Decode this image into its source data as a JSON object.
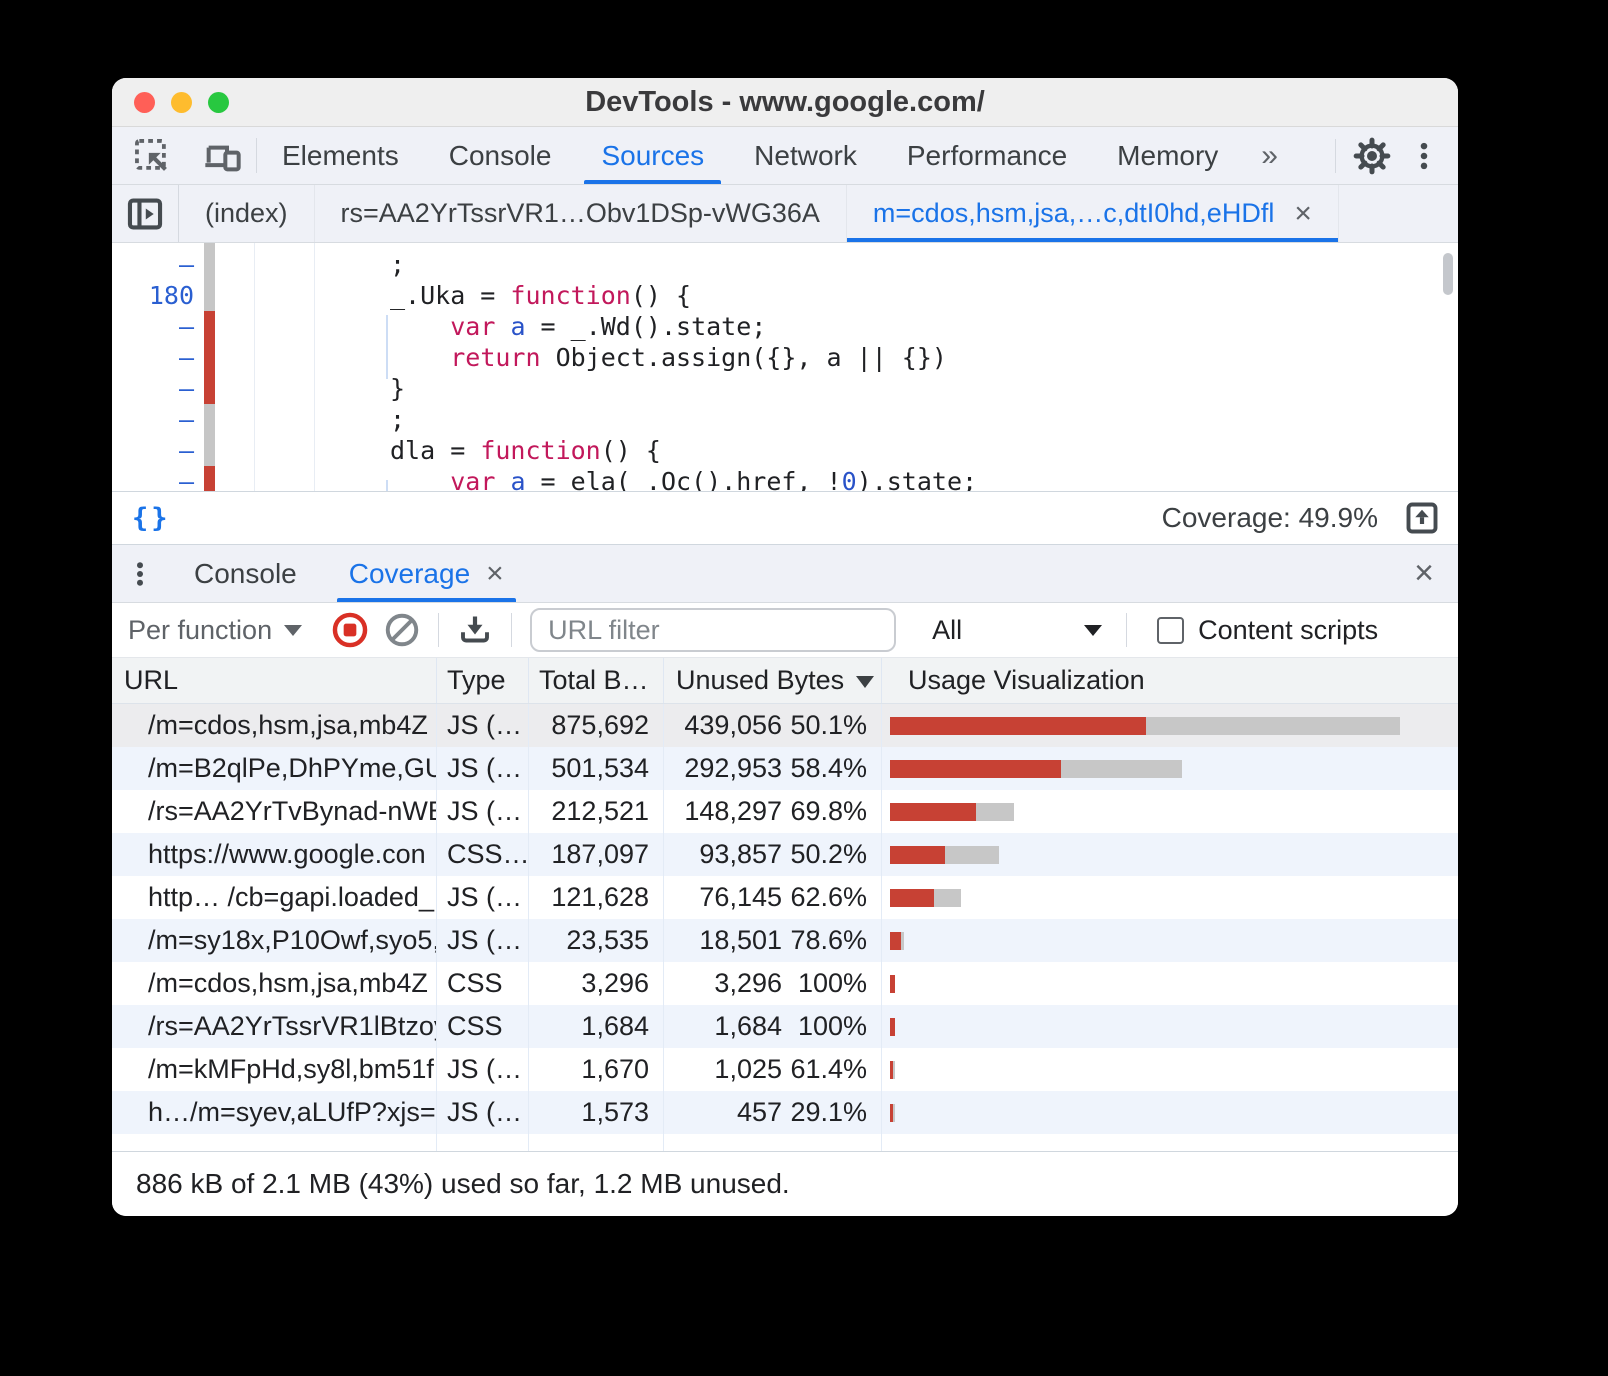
{
  "window": {
    "title": "DevTools - www.google.com/"
  },
  "toolbar": {
    "tabs": [
      "Elements",
      "Console",
      "Sources",
      "Network",
      "Performance",
      "Memory"
    ],
    "active_tab": "Sources",
    "more_tabs_glyph": "»"
  },
  "file_tabs": {
    "tabs": [
      {
        "label": "(index)",
        "active": false,
        "closable": false
      },
      {
        "label": "rs=AA2YrTssrVR1…Obv1DSp-vWG36A",
        "active": false,
        "closable": false
      },
      {
        "label": "m=cdos,hsm,jsa,…c,dtI0hd,eHDfl",
        "active": true,
        "closable": true
      }
    ],
    "close_glyph": "×"
  },
  "editor": {
    "lines": [
      {
        "num": "–",
        "cov": "gray",
        "segments": [
          {
            "t": ";",
            "c": "p"
          }
        ]
      },
      {
        "num": "180",
        "cov": "gray",
        "segments": [
          {
            "t": "_.Uka = ",
            "c": "p"
          },
          {
            "t": "function",
            "c": "k"
          },
          {
            "t": "() {",
            "c": "p"
          }
        ]
      },
      {
        "num": "–",
        "cov": "red",
        "segments": [
          {
            "t": "    ",
            "c": "p"
          },
          {
            "t": "var",
            "c": "k"
          },
          {
            "t": " ",
            "c": "p"
          },
          {
            "t": "a",
            "c": "v"
          },
          {
            "t": " = _.Wd().state;",
            "c": "p"
          }
        ]
      },
      {
        "num": "–",
        "cov": "red",
        "segments": [
          {
            "t": "    ",
            "c": "p"
          },
          {
            "t": "return",
            "c": "k"
          },
          {
            "t": " Object.assign({}, a || {})",
            "c": "p"
          }
        ]
      },
      {
        "num": "–",
        "cov": "red",
        "segments": [
          {
            "t": "}",
            "c": "p"
          }
        ]
      },
      {
        "num": "–",
        "cov": "gray",
        "segments": [
          {
            "t": ";",
            "c": "p"
          }
        ]
      },
      {
        "num": "–",
        "cov": "gray",
        "segments": [
          {
            "t": "dla = ",
            "c": "p"
          },
          {
            "t": "function",
            "c": "k"
          },
          {
            "t": "() {",
            "c": "p"
          }
        ]
      },
      {
        "num": "–",
        "cov": "red",
        "segments": [
          {
            "t": "    ",
            "c": "p"
          },
          {
            "t": "var",
            "c": "k"
          },
          {
            "t": " ",
            "c": "p"
          },
          {
            "t": "a",
            "c": "v"
          },
          {
            "t": " = ela(_.Oc().href, !",
            "c": "p"
          },
          {
            "t": "0",
            "c": "n"
          },
          {
            "t": ").state;",
            "c": "p"
          }
        ]
      }
    ]
  },
  "status_bar": {
    "pretty_print_glyph": "{}",
    "coverage_label": "Coverage: 49.9%"
  },
  "drawer": {
    "tabs": [
      {
        "label": "Console",
        "active": false,
        "closable": false
      },
      {
        "label": "Coverage",
        "active": true,
        "closable": true
      }
    ],
    "close_glyph": "×"
  },
  "coverage_toolbar": {
    "mode_dropdown_value": "Per function",
    "url_filter_placeholder": "URL filter",
    "type_dropdown_value": "All",
    "content_scripts_label": "Content scripts",
    "content_scripts_checked": false
  },
  "table": {
    "headers": {
      "url": "URL",
      "type": "Type",
      "total": "Total B…",
      "unused": "Unused Bytes",
      "usage": "Usage Visualization"
    },
    "sort": {
      "column": "unused",
      "direction": "desc"
    },
    "max_total_bytes": 875692,
    "rows": [
      {
        "url": "/m=cdos,hsm,jsa,mb4Z",
        "type": "JS (…",
        "total": "875,692",
        "unused": "439,056",
        "pct": "50.1%",
        "total_bytes": 875692,
        "unused_ratio": 0.501,
        "selected": true
      },
      {
        "url": "/m=B2qlPe,DhPYme,GU",
        "type": "JS (…",
        "total": "501,534",
        "unused": "292,953",
        "pct": "58.4%",
        "total_bytes": 501534,
        "unused_ratio": 0.584,
        "selected": false
      },
      {
        "url": "/rs=AA2YrTvBynad-nWE",
        "type": "JS (…",
        "total": "212,521",
        "unused": "148,297",
        "pct": "69.8%",
        "total_bytes": 212521,
        "unused_ratio": 0.698,
        "selected": false
      },
      {
        "url": "https://www.google.con",
        "type": "CSS…",
        "total": "187,097",
        "unused": "93,857",
        "pct": "50.2%",
        "total_bytes": 187097,
        "unused_ratio": 0.502,
        "selected": false
      },
      {
        "url": "http…  /cb=gapi.loaded_",
        "type": "JS (…",
        "total": "121,628",
        "unused": "76,145",
        "pct": "62.6%",
        "total_bytes": 121628,
        "unused_ratio": 0.626,
        "selected": false
      },
      {
        "url": "/m=sy18x,P10Owf,syo5,",
        "type": "JS (…",
        "total": "23,535",
        "unused": "18,501",
        "pct": "78.6%",
        "total_bytes": 23535,
        "unused_ratio": 0.786,
        "selected": false
      },
      {
        "url": "/m=cdos,hsm,jsa,mb4Z",
        "type": "CSS",
        "total": "3,296",
        "unused": "3,296",
        "pct": "100%",
        "total_bytes": 3296,
        "unused_ratio": 1,
        "selected": false
      },
      {
        "url": "/rs=AA2YrTssrVR1lBtzoy",
        "type": "CSS",
        "total": "1,684",
        "unused": "1,684",
        "pct": "100%",
        "total_bytes": 1684,
        "unused_ratio": 1,
        "selected": false
      },
      {
        "url": "/m=kMFpHd,sy8l,bm51f",
        "type": "JS (…",
        "total": "1,670",
        "unused": "1,025",
        "pct": "61.4%",
        "total_bytes": 1670,
        "unused_ratio": 0.614,
        "selected": false
      },
      {
        "url": "h…/m=syev,aLUfP?xjs=s",
        "type": "JS (…",
        "total": "1,573",
        "unused": "457",
        "pct": "29.1%",
        "total_bytes": 1573,
        "unused_ratio": 0.291,
        "selected": false
      }
    ]
  },
  "footer": {
    "summary": "886 kB of 2.1 MB (43%) used so far, 1.2 MB unused."
  },
  "colors": {
    "accent": "#1a73e8",
    "unused_red": "#c74134",
    "used_gray": "#c7c7c7",
    "record_red": "#d93025"
  }
}
